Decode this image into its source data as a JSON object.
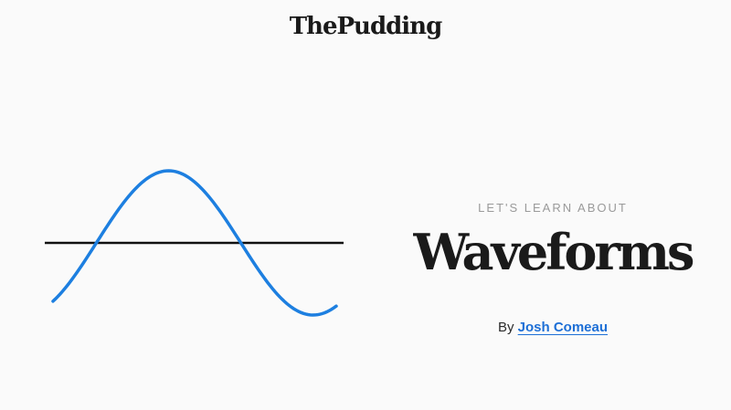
{
  "header": {
    "logo_text": "ThePudding"
  },
  "intro": {
    "kicker": "LET'S LEARN ABOUT",
    "title": "Waveforms",
    "byline_prefix": "By",
    "author_name": "Josh Comeau"
  },
  "wave_figure": {
    "wave_color": "#1d7fe0",
    "axis_color": "#111111"
  },
  "colors": {
    "background": "#fafafa",
    "link": "#1d6fd6",
    "kicker": "#9a9a9a"
  }
}
